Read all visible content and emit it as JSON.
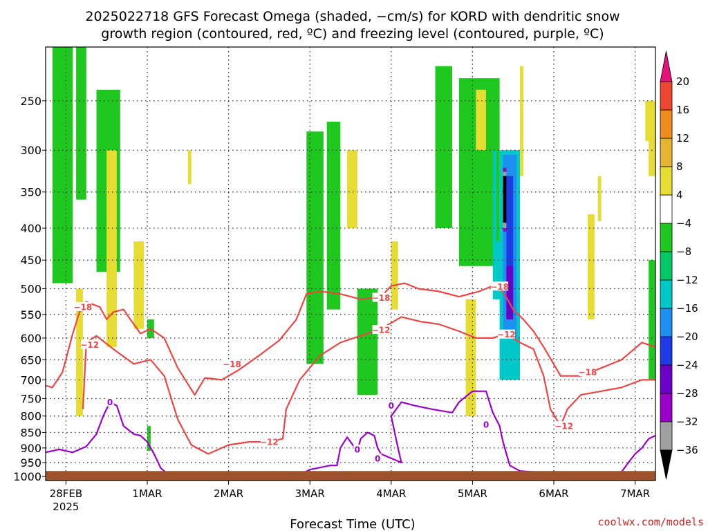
{
  "title_line1": "2025022718 GFS Forecast Omega (shaded, −cm/s) for KORD with dendritic snow",
  "title_line2": "growth region (contoured, red, ºC) and freezing level (contoured, purple, ºC)",
  "credit": "coolwx.com/models",
  "chart_data": {
    "type": "heatmap",
    "xlabel": "Forecast Time (UTC)",
    "ylabel": "",
    "y_scale": "log-pressure",
    "y_reversed": true,
    "ylim": [
      1015,
      205
    ],
    "xlim": [
      "2025-02-27T18",
      "2025-03-07T06"
    ],
    "grid": true,
    "x_ticks": [
      {
        "t": "2025-02-28T00",
        "label": "28FEB",
        "sublabel": "2025"
      },
      {
        "t": "2025-03-01T00",
        "label": "1MAR"
      },
      {
        "t": "2025-03-02T00",
        "label": "2MAR"
      },
      {
        "t": "2025-03-03T00",
        "label": "3MAR"
      },
      {
        "t": "2025-03-04T00",
        "label": "4MAR"
      },
      {
        "t": "2025-03-05T00",
        "label": "5MAR"
      },
      {
        "t": "2025-03-06T00",
        "label": "6MAR"
      },
      {
        "t": "2025-03-07T00",
        "label": "7MAR"
      }
    ],
    "y_ticks": [
      250,
      300,
      350,
      400,
      450,
      500,
      550,
      600,
      650,
      700,
      750,
      800,
      850,
      900,
      950,
      1000
    ],
    "colorbar": {
      "levels": [
        -36,
        -32,
        -28,
        -24,
        -20,
        -16,
        -12,
        -8,
        -4,
        4,
        8,
        12,
        16,
        20
      ],
      "labels": [
        "20",
        "16",
        "12",
        "8",
        "4",
        "−4",
        "−8",
        "−12",
        "−16",
        "−20",
        "−24",
        "−28",
        "−32",
        "−36"
      ],
      "colors": [
        "#000000",
        "#a0a0a0",
        "#9a00c8",
        "#6a00c8",
        "#1e3ce6",
        "#1e90f0",
        "#00c8c8",
        "#00c864",
        "#1ec81e",
        "#ffffff",
        "#e6dc32",
        "#e6b432",
        "#ee8c1e",
        "#ee4632"
      ],
      "over_color": "#e6127a",
      "under_color": "#000000"
    },
    "shaded_regions": [
      {
        "color": "#1ec81e",
        "t_start": "2025-02-27T20",
        "t_end": "2025-02-28T02",
        "p_top": 205,
        "p_bottom": 490
      },
      {
        "color": "#1ec81e",
        "t_start": "2025-02-28T03",
        "t_end": "2025-02-28T06",
        "p_top": 205,
        "p_bottom": 360
      },
      {
        "color": "#1ec81e",
        "t_start": "2025-02-28T09",
        "t_end": "2025-02-28T16",
        "p_top": 240,
        "p_bottom": 470
      },
      {
        "color": "#1ec81e",
        "t_start": "2025-03-01T00",
        "t_end": "2025-03-01T02",
        "p_top": 560,
        "p_bottom": 600
      },
      {
        "color": "#1ec81e",
        "t_start": "2025-03-01T00",
        "t_end": "2025-03-01T01",
        "p_top": 830,
        "p_bottom": 910
      },
      {
        "color": "#1ec81e",
        "t_start": "2025-03-02T23",
        "t_end": "2025-03-03T04",
        "p_top": 280,
        "p_bottom": 660
      },
      {
        "color": "#1ec81e",
        "t_start": "2025-03-03T05",
        "t_end": "2025-03-03T09",
        "p_top": 270,
        "p_bottom": 540
      },
      {
        "color": "#1ec81e",
        "t_start": "2025-03-03T14",
        "t_end": "2025-03-03T20",
        "p_top": 500,
        "p_bottom": 740
      },
      {
        "color": "#1ec81e",
        "t_start": "2025-03-04T13",
        "t_end": "2025-03-04T18",
        "p_top": 220,
        "p_bottom": 400
      },
      {
        "color": "#1ec81e",
        "t_start": "2025-03-04T20",
        "t_end": "2025-03-05T08",
        "p_top": 230,
        "p_bottom": 460
      },
      {
        "color": "#00c8c8",
        "t_start": "2025-03-05T06",
        "t_end": "2025-03-05T07",
        "p_top": 300,
        "p_bottom": 420
      },
      {
        "color": "#00c8c8",
        "t_start": "2025-03-05T06",
        "t_end": "2025-03-05T14",
        "p_top": 420,
        "p_bottom": 520
      },
      {
        "color": "#1ec81e",
        "t_start": "2025-03-05T12",
        "t_end": "2025-03-05T14",
        "p_top": 520,
        "p_bottom": 700
      },
      {
        "color": "#00c8c8",
        "t_start": "2025-03-05T08",
        "t_end": "2025-03-05T14",
        "p_top": 300,
        "p_bottom": 700
      },
      {
        "color": "#1e90f0",
        "t_start": "2025-03-05T09",
        "t_end": "2025-03-05T13",
        "p_top": 305,
        "p_bottom": 600
      },
      {
        "color": "#1e3ce6",
        "t_start": "2025-03-05T10",
        "t_end": "2025-03-05T12",
        "p_top": 330,
        "p_bottom": 540
      },
      {
        "color": "#6a00c8",
        "t_start": "2025-03-05T10",
        "t_end": "2025-03-05T12",
        "p_top": 460,
        "p_bottom": 560
      },
      {
        "color": "#9a00c8",
        "t_start": "2025-03-05T09",
        "t_end": "2025-03-05T10",
        "p_top": 320,
        "p_bottom": 405
      },
      {
        "color": "#a0a0a0",
        "t_start": "2025-03-05T09",
        "t_end": "2025-03-05T10",
        "p_top": 325,
        "p_bottom": 400
      },
      {
        "color": "#000000",
        "t_start": "2025-03-05T09",
        "t_end": "2025-03-05T10",
        "p_top": 330,
        "p_bottom": 392
      },
      {
        "color": "#1ec81e",
        "t_start": "2025-03-07T04",
        "t_end": "2025-03-07T06",
        "p_top": 450,
        "p_bottom": 700
      },
      {
        "color": "#e6dc32",
        "t_start": "2025-02-28T03",
        "t_end": "2025-02-28T05",
        "p_top": 500,
        "p_bottom": 800
      },
      {
        "color": "#e6dc32",
        "t_start": "2025-02-28T12",
        "t_end": "2025-02-28T15",
        "p_top": 300,
        "p_bottom": 620
      },
      {
        "color": "#e6dc32",
        "t_start": "2025-02-28T20",
        "t_end": "2025-02-28T23",
        "p_top": 420,
        "p_bottom": 580
      },
      {
        "color": "#e6dc32",
        "t_start": "2025-03-01T12",
        "t_end": "2025-03-01T13",
        "p_top": 300,
        "p_bottom": 340
      },
      {
        "color": "#e6dc32",
        "t_start": "2025-03-03T11",
        "t_end": "2025-03-03T14",
        "p_top": 300,
        "p_bottom": 400
      },
      {
        "color": "#e6dc32",
        "t_start": "2025-03-04T00",
        "t_end": "2025-03-04T02",
        "p_top": 420,
        "p_bottom": 540
      },
      {
        "color": "#e6dc32",
        "t_start": "2025-03-04T22",
        "t_end": "2025-03-05T01",
        "p_top": 520,
        "p_bottom": 800
      },
      {
        "color": "#e6b432",
        "t_start": "2025-03-05T02",
        "t_end": "2025-03-05T03",
        "p_top": 270,
        "p_bottom": 290
      },
      {
        "color": "#e6dc32",
        "t_start": "2025-03-05T01",
        "t_end": "2025-03-05T04",
        "p_top": 240,
        "p_bottom": 300
      },
      {
        "color": "#e6dc32",
        "t_start": "2025-03-05T14",
        "t_end": "2025-03-05T15",
        "p_top": 220,
        "p_bottom": 330
      },
      {
        "color": "#e6dc32",
        "t_start": "2025-03-06T10",
        "t_end": "2025-03-06T12",
        "p_top": 380,
        "p_bottom": 560
      },
      {
        "color": "#e6dc32",
        "t_start": "2025-03-06T13",
        "t_end": "2025-03-06T14",
        "p_top": 330,
        "p_bottom": 390
      },
      {
        "color": "#e6dc32",
        "t_start": "2025-03-07T03",
        "t_end": "2025-03-07T06",
        "p_top": 250,
        "p_bottom": 290
      },
      {
        "color": "#e6dc32",
        "t_start": "2025-03-07T04",
        "t_end": "2025-03-07T06",
        "p_top": 280,
        "p_bottom": 330
      }
    ],
    "contours_dgz": [
      {
        "level": -18,
        "color": "#ee4444",
        "points": [
          [
            "2025-02-27T18",
            715
          ],
          [
            "2025-02-27T20",
            720
          ],
          [
            "2025-02-27T23",
            680
          ],
          [
            "2025-02-28T02",
            590
          ],
          [
            "2025-02-28T04",
            545
          ],
          [
            "2025-02-28T06",
            525
          ],
          [
            "2025-02-28T10",
            535
          ],
          [
            "2025-02-28T12",
            560
          ],
          [
            "2025-02-28T14",
            545
          ],
          [
            "2025-02-28T17",
            540
          ],
          [
            "2025-02-28T19",
            560
          ],
          [
            "2025-02-28T22",
            590
          ],
          [
            "2025-03-01T01",
            580
          ],
          [
            "2025-03-01T05",
            600
          ],
          [
            "2025-03-01T09",
            670
          ],
          [
            "2025-03-01T14",
            740
          ],
          [
            "2025-03-01T17",
            695
          ],
          [
            "2025-03-01T22",
            700
          ],
          [
            "2025-03-02T03",
            675
          ],
          [
            "2025-03-02T09",
            640
          ],
          [
            "2025-03-02T15",
            605
          ],
          [
            "2025-03-02T20",
            560
          ],
          [
            "2025-03-02T23",
            510
          ],
          [
            "2025-03-03T03",
            505
          ],
          [
            "2025-03-03T09",
            510
          ],
          [
            "2025-03-03T15",
            520
          ],
          [
            "2025-03-03T21",
            515
          ],
          [
            "2025-03-04T00",
            495
          ],
          [
            "2025-03-04T04",
            490
          ],
          [
            "2025-03-04T08",
            500
          ],
          [
            "2025-03-04T14",
            505
          ],
          [
            "2025-03-04T20",
            515
          ],
          [
            "2025-03-05T02",
            505
          ],
          [
            "2025-03-05T06",
            495
          ],
          [
            "2025-03-05T09",
            505
          ],
          [
            "2025-03-05T12",
            540
          ],
          [
            "2025-03-05T15",
            560
          ],
          [
            "2025-03-05T18",
            585
          ],
          [
            "2025-03-05T21",
            620
          ],
          [
            "2025-03-06T02",
            690
          ],
          [
            "2025-03-06T08",
            690
          ],
          [
            "2025-03-06T14",
            670
          ],
          [
            "2025-03-06T20",
            650
          ],
          [
            "2025-03-07T02",
            610
          ],
          [
            "2025-03-07T06",
            620
          ]
        ],
        "labels": [
          {
            "t": "2025-02-28T05",
            "p": 535,
            "text": "−18"
          },
          {
            "t": "2025-03-02T01",
            "p": 660,
            "text": "−18"
          },
          {
            "t": "2025-03-03T21",
            "p": 517,
            "text": "−18"
          },
          {
            "t": "2025-03-05T08",
            "p": 496,
            "text": "−18"
          },
          {
            "t": "2025-03-06T10",
            "p": 680,
            "text": "−18"
          }
        ]
      },
      {
        "level": -12,
        "color": "#ee4444",
        "points": [
          [
            "2025-02-28T05",
            780
          ],
          [
            "2025-02-28T06",
            610
          ],
          [
            "2025-02-28T09",
            595
          ],
          [
            "2025-02-28T14",
            625
          ],
          [
            "2025-02-28T20",
            660
          ],
          [
            "2025-03-01T01",
            650
          ],
          [
            "2025-03-01T05",
            690
          ],
          [
            "2025-03-01T09",
            810
          ],
          [
            "2025-03-01T13",
            890
          ],
          [
            "2025-03-01T18",
            920
          ],
          [
            "2025-03-02T00",
            890
          ],
          [
            "2025-03-02T06",
            880
          ],
          [
            "2025-03-02T12",
            880
          ],
          [
            "2025-03-02T16",
            870
          ],
          [
            "2025-03-02T17",
            780
          ],
          [
            "2025-03-02T21",
            700
          ],
          [
            "2025-03-03T03",
            640
          ],
          [
            "2025-03-03T09",
            610
          ],
          [
            "2025-03-03T15",
            595
          ],
          [
            "2025-03-03T21",
            580
          ],
          [
            "2025-03-04T03",
            555
          ],
          [
            "2025-03-04T09",
            565
          ],
          [
            "2025-03-04T14",
            570
          ],
          [
            "2025-03-04T20",
            585
          ],
          [
            "2025-03-05T01",
            600
          ],
          [
            "2025-03-05T06",
            600
          ],
          [
            "2025-03-05T10",
            590
          ],
          [
            "2025-03-05T14",
            610
          ],
          [
            "2025-03-05T18",
            625
          ],
          [
            "2025-03-05T21",
            690
          ],
          [
            "2025-03-05T23",
            780
          ],
          [
            "2025-03-06T02",
            830
          ],
          [
            "2025-03-06T04",
            780
          ],
          [
            "2025-03-06T08",
            740
          ],
          [
            "2025-03-06T14",
            730
          ],
          [
            "2025-03-06T20",
            720
          ],
          [
            "2025-03-07T02",
            700
          ],
          [
            "2025-03-07T06",
            700
          ]
        ],
        "labels": [
          {
            "t": "2025-02-28T07",
            "p": 615,
            "text": "−12"
          },
          {
            "t": "2025-03-02T12",
            "p": 880,
            "text": "−12"
          },
          {
            "t": "2025-03-03T21",
            "p": 582,
            "text": "−12"
          },
          {
            "t": "2025-03-05T10",
            "p": 592,
            "text": "−12"
          },
          {
            "t": "2025-03-06T03",
            "p": 830,
            "text": "−12"
          }
        ]
      }
    ],
    "contours_freezing": [
      {
        "level": 0,
        "color": "#9a00c8",
        "points": [
          [
            "2025-02-27T18",
            915
          ],
          [
            "2025-02-27T22",
            905
          ],
          [
            "2025-02-28T02",
            915
          ],
          [
            "2025-02-28T06",
            895
          ],
          [
            "2025-02-28T09",
            855
          ],
          [
            "2025-02-28T11",
            800
          ],
          [
            "2025-02-28T13",
            760
          ],
          [
            "2025-02-28T15",
            770
          ],
          [
            "2025-02-28T17",
            830
          ],
          [
            "2025-02-28T20",
            855
          ],
          [
            "2025-02-28T22",
            860
          ],
          [
            "2025-03-01T00",
            880
          ],
          [
            "2025-03-01T02",
            920
          ],
          [
            "2025-03-01T04",
            970
          ],
          [
            "2025-03-01T07",
            1000
          ]
        ],
        "labels": [
          {
            "t": "2025-02-28T13",
            "p": 760,
            "text": "0"
          }
        ]
      },
      {
        "level": 0,
        "color": "#9a00c8",
        "points": [
          [
            "2025-03-02T20",
            1000
          ],
          [
            "2025-03-03T00",
            975
          ],
          [
            "2025-03-03T06",
            960
          ],
          [
            "2025-03-03T08",
            960
          ],
          [
            "2025-03-03T09",
            900
          ],
          [
            "2025-03-03T11",
            865
          ],
          [
            "2025-03-03T12",
            880
          ],
          [
            "2025-03-03T14",
            910
          ],
          [
            "2025-03-03T15",
            870
          ],
          [
            "2025-03-03T17",
            850
          ],
          [
            "2025-03-03T19",
            860
          ],
          [
            "2025-03-03T20",
            900
          ],
          [
            "2025-03-03T21",
            920
          ],
          [
            "2025-03-03T23",
            930
          ],
          [
            "2025-03-04T01",
            940
          ],
          [
            "2025-03-04T03",
            950
          ],
          [
            "2025-03-04T02",
            900
          ],
          [
            "2025-03-04T00",
            800
          ],
          [
            "2025-03-04T03",
            760
          ],
          [
            "2025-03-04T07",
            770
          ],
          [
            "2025-03-04T12",
            780
          ],
          [
            "2025-03-04T18",
            790
          ],
          [
            "2025-03-04T20",
            760
          ],
          [
            "2025-03-05T00",
            730
          ],
          [
            "2025-03-05T04",
            730
          ],
          [
            "2025-03-05T05",
            760
          ],
          [
            "2025-03-05T06",
            790
          ],
          [
            "2025-03-05T08",
            830
          ],
          [
            "2025-03-05T09",
            880
          ],
          [
            "2025-03-05T11",
            960
          ],
          [
            "2025-03-05T14",
            980
          ],
          [
            "2025-03-05T20",
            985
          ],
          [
            "2025-03-05T23",
            1000
          ]
        ],
        "labels": [
          {
            "t": "2025-03-04T00",
            "p": 770,
            "text": "0"
          },
          {
            "t": "2025-03-05T04",
            "p": 825,
            "text": "0"
          },
          {
            "t": "2025-03-03T14",
            "p": 905,
            "text": "0"
          },
          {
            "t": "2025-03-03T20",
            "p": 935,
            "text": "0"
          }
        ]
      },
      {
        "level": 0,
        "color": "#9a00c8",
        "points": [
          [
            "2025-03-06T15",
            1000
          ],
          [
            "2025-03-06T19",
            1000
          ],
          [
            "2025-03-06T22",
            950
          ],
          [
            "2025-03-07T00",
            920
          ],
          [
            "2025-03-07T02",
            900
          ],
          [
            "2025-03-07T04",
            870
          ],
          [
            "2025-03-07T06",
            860
          ]
        ],
        "labels": []
      }
    ],
    "terrain": {
      "color": "#a0522d",
      "p_surface": 980
    }
  }
}
